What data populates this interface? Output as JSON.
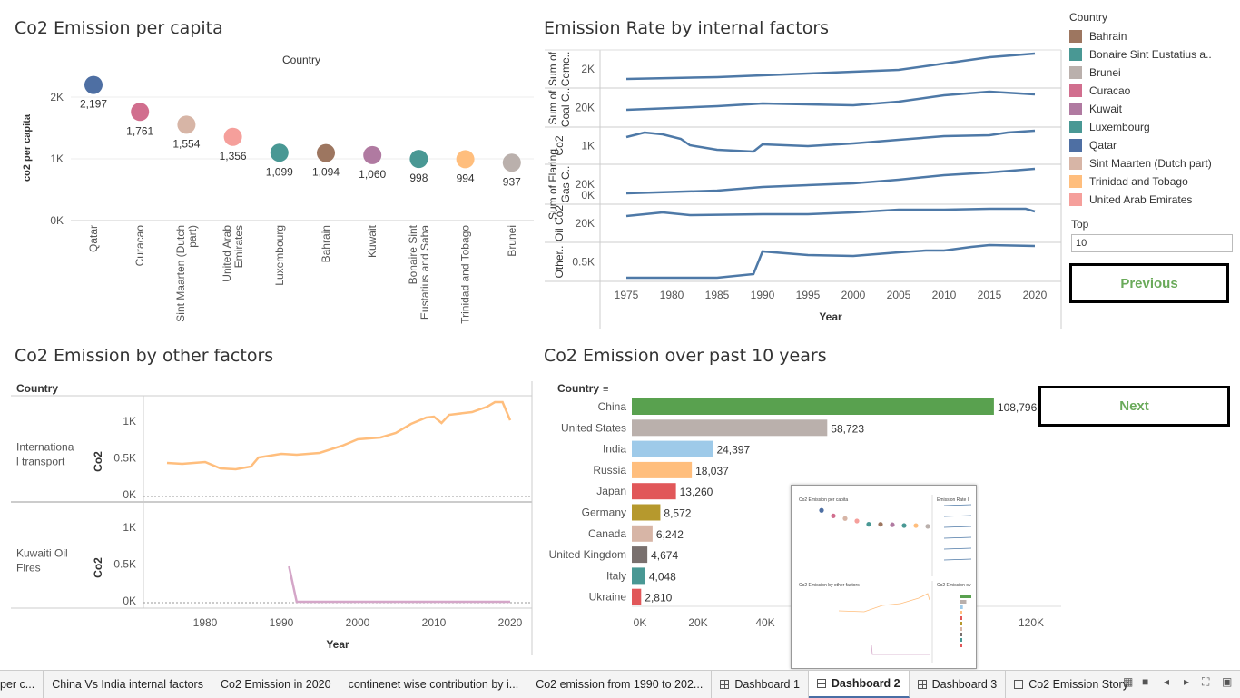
{
  "panels": {
    "p1_title": "Co2 Emission per capita",
    "p2_title": "Emission Rate by internal factors",
    "p3_title": "Co2 Emission by other factors",
    "p4_title": "Co2 Emission over past 10 years"
  },
  "chart1": {
    "header": "Country",
    "ylabel": "co2 per capita",
    "yticks": [
      "2K",
      "1K",
      "0K"
    ],
    "points": [
      {
        "country": "Qatar",
        "value": 2197,
        "label": "2,197",
        "color": "#4e6fa3"
      },
      {
        "country": "Curacao",
        "value": 1761,
        "label": "1,761",
        "color": "#d16e8e"
      },
      {
        "country": "Sint Maarten (Dutch part)",
        "value": 1554,
        "label": "1,554",
        "color": "#d7b5a6"
      },
      {
        "country": "United Arab Emirates",
        "value": 1356,
        "label": "1,356",
        "color": "#f59f9b"
      },
      {
        "country": "Luxembourg",
        "value": 1099,
        "label": "1,099",
        "color": "#499894"
      },
      {
        "country": "Bahrain",
        "value": 1094,
        "label": "1,094",
        "color": "#9d7660"
      },
      {
        "country": "Kuwait",
        "value": 1060,
        "label": "1,060",
        "color": "#b07aa1"
      },
      {
        "country": "Bonaire Sint Eustatius and Saba",
        "value": 998,
        "label": "998",
        "color": "#499894"
      },
      {
        "country": "Trinidad and Tobago",
        "value": 994,
        "label": "994",
        "color": "#ffbe7d"
      },
      {
        "country": "Brunei",
        "value": 937,
        "label": "937",
        "color": "#bab0ac"
      }
    ],
    "xlabels": [
      [
        "Qatar"
      ],
      [
        "Curacao"
      ],
      [
        "Sint Maarten (Dutch",
        "part)"
      ],
      [
        "United Arab",
        "Emirates"
      ],
      [
        "Luxembourg"
      ],
      [
        "Bahrain"
      ],
      [
        "Kuwait"
      ],
      [
        "Bonaire Sint",
        "Eustatius and Saba"
      ],
      [
        "Trinidad and Tobago"
      ],
      [
        "Brunei"
      ]
    ]
  },
  "chart2": {
    "xlabel": "Year",
    "xticks": [
      "1975",
      "1980",
      "1985",
      "1990",
      "1995",
      "2000",
      "2005",
      "2010",
      "2015",
      "2020"
    ],
    "rows": [
      {
        "label_lines": [
          "Sum of",
          "Ceme.."
        ],
        "tick": "2K"
      },
      {
        "label_lines": [
          "Sum of",
          "Coal C.."
        ],
        "tick": "20K"
      },
      {
        "label_lines": [
          "Co2"
        ],
        "tick": "1K"
      },
      {
        "label_lines": [
          "Sum of Flaring",
          "Gas C.."
        ],
        "tick": "20K",
        "tick2": "0K"
      },
      {
        "label_lines": [
          "Oil Co2"
        ],
        "tick": "20K"
      },
      {
        "label_lines": [
          "Other.."
        ],
        "tick": "0.5K"
      }
    ]
  },
  "legend": {
    "title": "Country",
    "items": [
      {
        "label": "Bahrain",
        "color": "#9d7660"
      },
      {
        "label": "Bonaire Sint Eustatius a..",
        "color": "#499894"
      },
      {
        "label": "Brunei",
        "color": "#bab0ac"
      },
      {
        "label": "Curacao",
        "color": "#d16e8e"
      },
      {
        "label": "Kuwait",
        "color": "#b07aa1"
      },
      {
        "label": "Luxembourg",
        "color": "#499894"
      },
      {
        "label": "Qatar",
        "color": "#4e6fa3"
      },
      {
        "label": "Sint Maarten (Dutch part)",
        "color": "#d7b5a6"
      },
      {
        "label": "Trinidad and Tobago",
        "color": "#ffbe7d"
      },
      {
        "label": "United Arab Emirates",
        "color": "#f59f9b"
      }
    ]
  },
  "controls": {
    "top_label": "Top",
    "top_value": "10",
    "previous": "Previous",
    "next": "Next"
  },
  "chart3": {
    "header": "Country",
    "ylabel": "Co2",
    "xlabel": "Year",
    "xticks": [
      "1980",
      "1990",
      "2000",
      "2010",
      "2020"
    ],
    "rows": [
      {
        "label": "Internationa l transport",
        "yticks": [
          "1K",
          "0.5K",
          "0K"
        ],
        "color": "#ffbe7d"
      },
      {
        "label": "Kuwaiti Oil Fires",
        "yticks": [
          "1K",
          "0.5K",
          "0K"
        ],
        "color": "#d4a6c8"
      }
    ]
  },
  "chart4": {
    "header": "Country",
    "xticks": [
      "0K",
      "20K",
      "40K",
      "120K"
    ],
    "bars": [
      {
        "country": "China",
        "value": 108796,
        "label": "108,796",
        "color": "#59a14f"
      },
      {
        "country": "United States",
        "value": 58723,
        "label": "58,723",
        "color": "#bab0ac"
      },
      {
        "country": "India",
        "value": 24397,
        "label": "24,397",
        "color": "#9ecae9"
      },
      {
        "country": "Russia",
        "value": 18037,
        "label": "18,037",
        "color": "#ffbe7d"
      },
      {
        "country": "Japan",
        "value": 13260,
        "label": "13,260",
        "color": "#e15759"
      },
      {
        "country": "Germany",
        "value": 8572,
        "label": "8,572",
        "color": "#b6992d"
      },
      {
        "country": "Canada",
        "value": 6242,
        "label": "6,242",
        "color": "#d7b5a6"
      },
      {
        "country": "United Kingdom",
        "value": 4674,
        "label": "4,674",
        "color": "#79706e"
      },
      {
        "country": "Italy",
        "value": 4048,
        "label": "4,048",
        "color": "#499894"
      },
      {
        "country": "Ukraine",
        "value": 2810,
        "label": "2,810",
        "color": "#e15759"
      }
    ]
  },
  "thumbnail": {
    "t1": "Co2 Emission per capita",
    "t2": "Emission Rate I",
    "t3": "Co2 Emission by other factors",
    "t4": "Co2 Emission ov"
  },
  "tabs": [
    {
      "label": "per c...",
      "icon": "",
      "active": false
    },
    {
      "label": "China Vs India internal factors",
      "icon": "",
      "active": false
    },
    {
      "label": "Co2 Emission in 2020",
      "icon": "",
      "active": false
    },
    {
      "label": "continenet wise contribution by i...",
      "icon": "",
      "active": false
    },
    {
      "label": "Co2 emission from 1990 to 202...",
      "icon": "",
      "active": false
    },
    {
      "label": "Dashboard 1",
      "icon": "dashboard-icon",
      "active": false
    },
    {
      "label": "Dashboard 2",
      "icon": "dashboard-icon",
      "active": true
    },
    {
      "label": "Dashboard 3",
      "icon": "dashboard-icon",
      "active": false
    },
    {
      "label": "Co2 Emission Story",
      "icon": "story-icon",
      "active": false
    }
  ]
}
